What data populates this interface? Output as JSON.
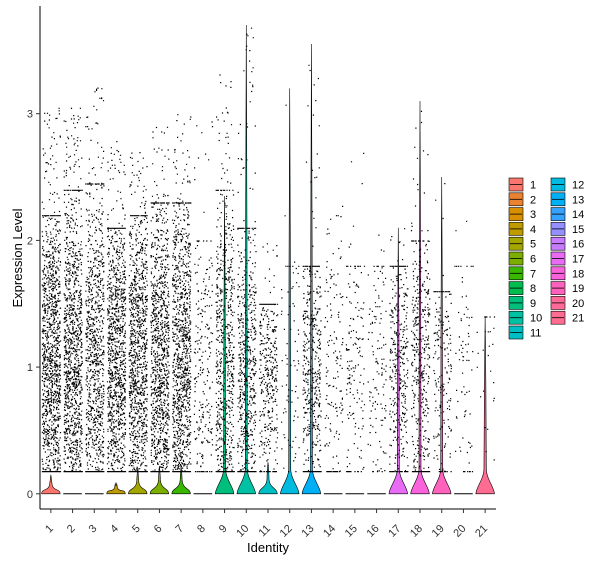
{
  "chart_data": {
    "type": "violin",
    "title": "",
    "xlabel": "Identity",
    "ylabel": "Expression Level",
    "ylim": [
      -0.12,
      3.85
    ],
    "yticks": [
      0,
      1,
      2,
      3
    ],
    "grid": false,
    "legend_position": "right",
    "categories": [
      "1",
      "2",
      "3",
      "4",
      "5",
      "6",
      "7",
      "8",
      "9",
      "10",
      "11",
      "12",
      "13",
      "14",
      "15",
      "16",
      "17",
      "18",
      "19",
      "20",
      "21"
    ],
    "series": [
      {
        "name": "1",
        "color": "#F8766D",
        "violin_max": 0.15,
        "neck_width": 0.35,
        "point_density": 1.0,
        "dense_max": 2.2,
        "point_max": 3.1
      },
      {
        "name": "2",
        "color": "#EA8331",
        "violin_max": 0.0,
        "neck_width": 0.0,
        "point_density": 0.95,
        "dense_max": 2.4,
        "point_max": 3.05
      },
      {
        "name": "3",
        "color": "#D89000",
        "violin_max": 0.0,
        "neck_width": 0.0,
        "point_density": 0.75,
        "dense_max": 2.45,
        "point_max": 3.25
      },
      {
        "name": "4",
        "color": "#C09B00",
        "violin_max": 0.09,
        "neck_width": 0.25,
        "point_density": 0.9,
        "dense_max": 2.1,
        "point_max": 2.85
      },
      {
        "name": "5",
        "color": "#A3A500",
        "violin_max": 0.2,
        "neck_width": 0.3,
        "point_density": 0.9,
        "dense_max": 2.2,
        "point_max": 2.7
      },
      {
        "name": "6",
        "color": "#7CAE00",
        "violin_max": 0.22,
        "neck_width": 0.3,
        "point_density": 0.9,
        "dense_max": 2.3,
        "point_max": 2.9
      },
      {
        "name": "7",
        "color": "#39B600",
        "violin_max": 0.22,
        "neck_width": 0.3,
        "point_density": 0.9,
        "dense_max": 2.3,
        "point_max": 3.0
      },
      {
        "name": "8",
        "color": "#00BB4E",
        "violin_max": 0.0,
        "neck_width": 0.0,
        "point_density": 0.18,
        "dense_max": 2.0,
        "point_max": 2.95
      },
      {
        "name": "9",
        "color": "#00BF7D",
        "violin_max": 2.35,
        "neck_width": 0.15,
        "point_density": 0.55,
        "dense_max": 2.4,
        "point_max": 3.35
      },
      {
        "name": "10",
        "color": "#00C1A3",
        "violin_max": 3.7,
        "neck_width": 0.15,
        "point_density": 0.5,
        "dense_max": 2.1,
        "point_max": 3.7
      },
      {
        "name": "11",
        "color": "#00BFC4",
        "violin_max": 0.25,
        "neck_width": 0.25,
        "point_density": 0.3,
        "dense_max": 1.5,
        "point_max": 2.0
      },
      {
        "name": "12",
        "color": "#00BAE0",
        "violin_max": 3.2,
        "neck_width": 0.0,
        "point_density": 0.06,
        "dense_max": 1.8,
        "point_max": 3.2
      },
      {
        "name": "13",
        "color": "#00B0F6",
        "violin_max": 3.55,
        "neck_width": 0.3,
        "point_density": 0.35,
        "dense_max": 1.8,
        "point_max": 3.55
      },
      {
        "name": "14",
        "color": "#35A2FF",
        "violin_max": 0.0,
        "neck_width": 0.0,
        "point_density": 0.12,
        "dense_max": 2.2,
        "point_max": 2.35
      },
      {
        "name": "15",
        "color": "#9590FF",
        "violin_max": 0.0,
        "neck_width": 0.0,
        "point_density": 0.12,
        "dense_max": 1.8,
        "point_max": 2.75
      },
      {
        "name": "16",
        "color": "#C77CFF",
        "violin_max": 0.0,
        "neck_width": 0.0,
        "point_density": 0.1,
        "dense_max": 1.8,
        "point_max": 2.5
      },
      {
        "name": "17",
        "color": "#E76BF3",
        "violin_max": 2.1,
        "neck_width": 0.35,
        "point_density": 0.3,
        "dense_max": 1.8,
        "point_max": 2.1
      },
      {
        "name": "18",
        "color": "#FA62DB",
        "violin_max": 3.1,
        "neck_width": 0.3,
        "point_density": 0.35,
        "dense_max": 2.0,
        "point_max": 3.1
      },
      {
        "name": "19",
        "color": "#FF62BC",
        "violin_max": 2.5,
        "neck_width": 0.3,
        "point_density": 0.15,
        "dense_max": 1.6,
        "point_max": 2.5
      },
      {
        "name": "20",
        "color": "#FF6A98",
        "violin_max": 0.0,
        "neck_width": 0.0,
        "point_density": 0.06,
        "dense_max": 1.8,
        "point_max": 2.25
      },
      {
        "name": "21",
        "color": "#FF6C91",
        "violin_max": 1.4,
        "neck_width": 0.4,
        "point_density": 0.02,
        "dense_max": 1.4,
        "point_max": 1.4
      }
    ],
    "legend": {
      "items": [
        "1",
        "2",
        "3",
        "4",
        "5",
        "6",
        "7",
        "8",
        "9",
        "10",
        "11",
        "12",
        "13",
        "14",
        "15",
        "16",
        "17",
        "18",
        "19",
        "20",
        "21"
      ]
    }
  }
}
